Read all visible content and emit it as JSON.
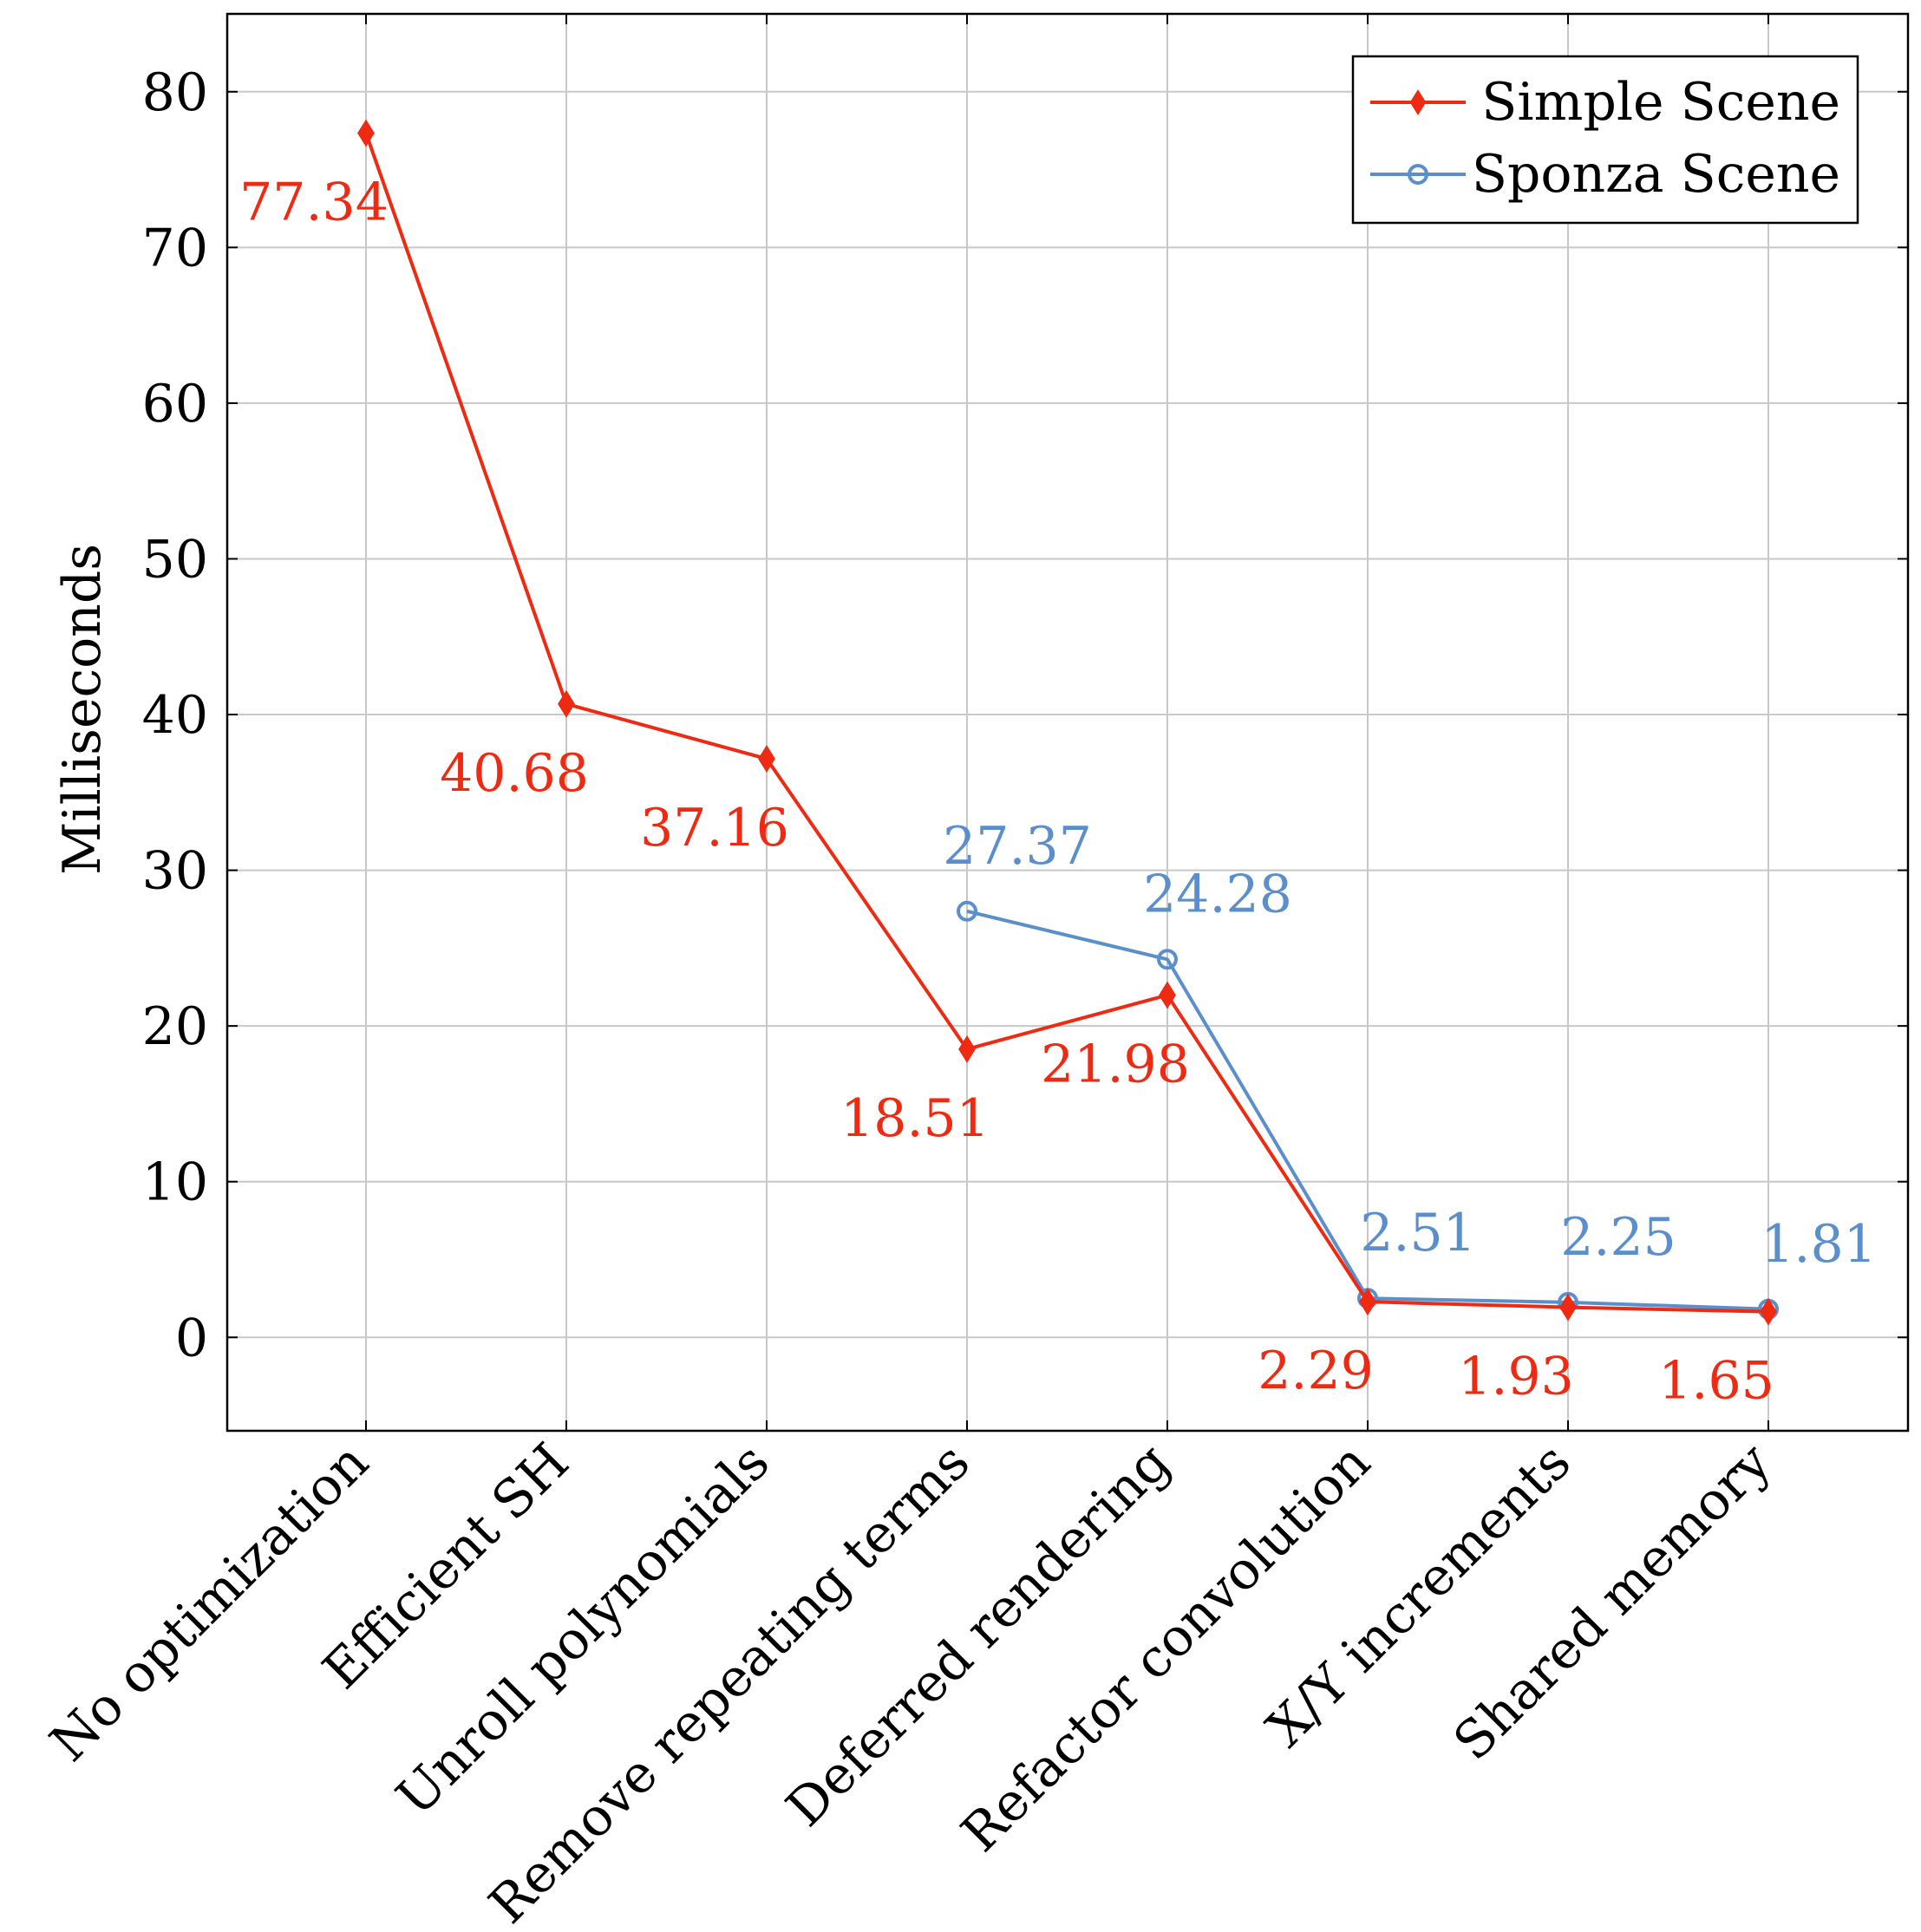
{
  "chart_data": {
    "type": "line",
    "title": "",
    "xlabel": "",
    "ylabel": "Milliseconds",
    "categories": [
      "No optimization",
      "Efficient SH",
      "Unroll polynomials",
      "Remove repeating terms",
      "Deferred rendering",
      "Refactor convolution",
      "X/Y increments",
      "Shared memory"
    ],
    "ylim": [
      -6,
      85
    ],
    "yticks": [
      0,
      10,
      20,
      30,
      40,
      50,
      60,
      70,
      80
    ],
    "grid": true,
    "legend_position": "top-right",
    "series": [
      {
        "name": "Simple Scene",
        "color": "#ee2a12",
        "marker": "diamond",
        "values": [
          77.34,
          40.68,
          37.16,
          18.51,
          21.98,
          2.29,
          1.93,
          1.65
        ],
        "labels": [
          "77.34",
          "40.68",
          "37.16",
          "18.51",
          "21.98",
          "2.29",
          "1.93",
          "1.65"
        ]
      },
      {
        "name": "Sponza Scene",
        "color": "#5b8fcb",
        "marker": "circle",
        "values": [
          null,
          null,
          null,
          27.37,
          24.28,
          2.51,
          2.25,
          1.81
        ],
        "labels": [
          null,
          null,
          null,
          "27.37",
          "24.28",
          "2.51",
          "2.25",
          "1.81"
        ]
      }
    ]
  }
}
